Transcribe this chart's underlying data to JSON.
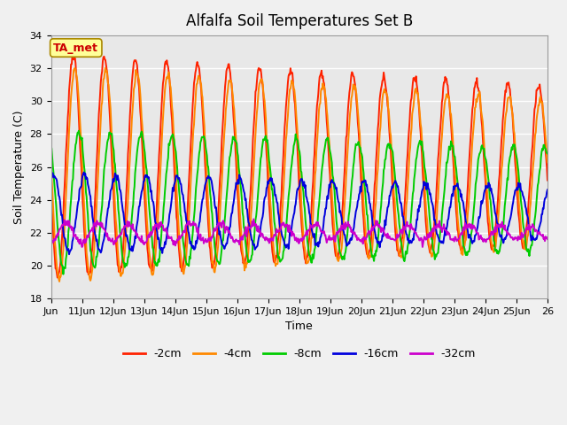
{
  "title": "Alfalfa Soil Temperatures Set B",
  "xlabel": "Time",
  "ylabel": "Soil Temperature (C)",
  "ylim": [
    18,
    34
  ],
  "xlim": [
    0,
    16
  ],
  "x_tick_labels": [
    "Jun",
    "11Jun",
    "12Jun",
    "13Jun",
    "14Jun",
    "15Jun",
    "16Jun",
    "17Jun",
    "18Jun",
    "19Jun",
    "20Jun",
    "21Jun",
    "22Jun",
    "23Jun",
    "24Jun",
    "25Jun",
    "26"
  ],
  "background_color": "#e8e8e8",
  "fig_background": "#f0f0f0",
  "annotation_text": "TA_met",
  "annotation_box_color": "#ffff99",
  "annotation_text_color": "#cc0000",
  "series": [
    {
      "label": "-2cm",
      "color": "#ff2200",
      "amp_start": 6.8,
      "amp_end": 4.8,
      "baseline": 26.1,
      "phase_lag": 0.22,
      "linewidth": 1.4
    },
    {
      "label": "-4cm",
      "color": "#ff8800",
      "amp_start": 6.5,
      "amp_end": 4.5,
      "baseline": 25.6,
      "phase_lag": 0.27,
      "linewidth": 1.4
    },
    {
      "label": "-8cm",
      "color": "#00cc00",
      "amp_start": 4.2,
      "amp_end": 3.2,
      "baseline": 24.0,
      "phase_lag": 0.4,
      "linewidth": 1.4
    },
    {
      "label": "-16cm",
      "color": "#0000dd",
      "amp_start": 2.4,
      "amp_end": 1.6,
      "baseline": 23.2,
      "phase_lag": 0.58,
      "linewidth": 1.4
    },
    {
      "label": "-32cm",
      "color": "#cc00cc",
      "amp_start": 0.6,
      "amp_end": 0.4,
      "baseline": 22.0,
      "phase_lag": 0.0,
      "linewidth": 1.4
    }
  ],
  "legend_colors": [
    "#ff2200",
    "#ff8800",
    "#00cc00",
    "#0000dd",
    "#cc00cc"
  ],
  "legend_labels": [
    "-2cm",
    "-4cm",
    "-8cm",
    "-16cm",
    "-32cm"
  ]
}
